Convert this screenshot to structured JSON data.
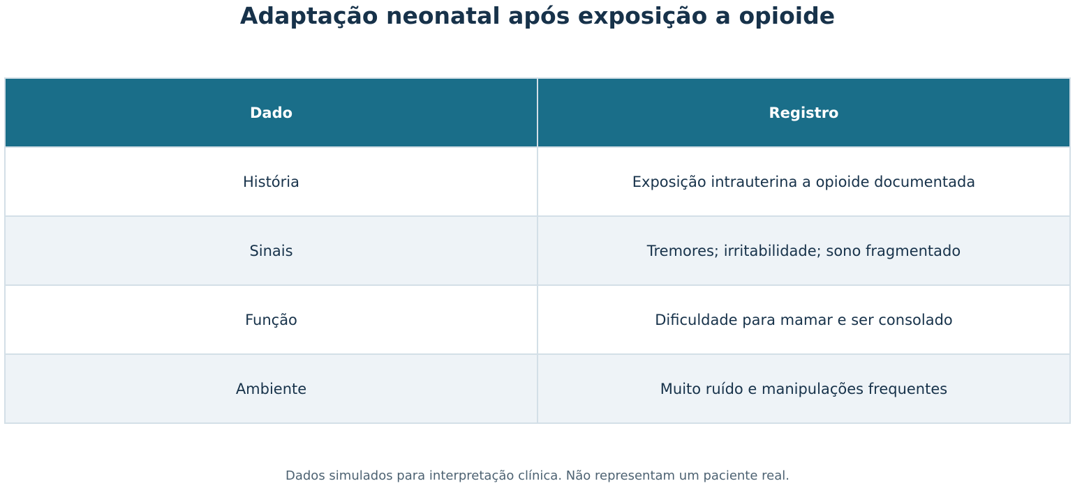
{
  "title": "Adaptação neonatal após exposição a opioide",
  "table": {
    "header": [
      "Dado",
      "Registro"
    ],
    "rows": [
      [
        "História",
        "Exposição intrauterina a opioide documentada"
      ],
      [
        "Sinais",
        "Tremores; irritabilidade; sono fragmentado"
      ],
      [
        "Função",
        "Dificuldade para mamar e ser consolado"
      ],
      [
        "Ambiente",
        "Muito ruído e manipulações frequentes"
      ]
    ]
  },
  "footnote": "Dados simulados para interpretação clínica. Não representam um paciente real."
}
